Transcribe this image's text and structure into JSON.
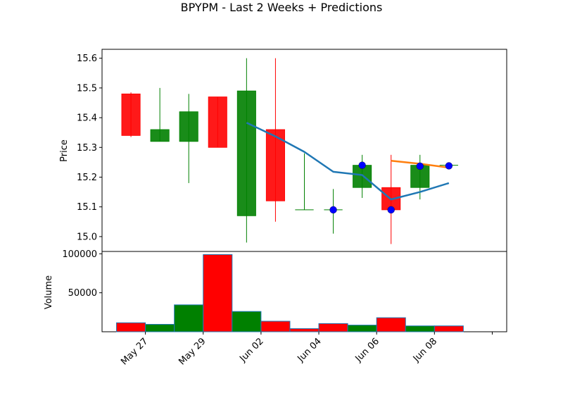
{
  "chart_data": {
    "title": "BPYPM - Last 2 Weeks + Predictions",
    "type": "candlestick",
    "colors": {
      "up": "#008000",
      "down": "#ff0000",
      "prediction_line": "#1f77b4",
      "forecast_line": "#ff7f0e",
      "marker": "#0000ff"
    },
    "x_ticks": [
      "May 27",
      "May 29",
      "Jun 02",
      "Jun 04",
      "Jun 06",
      "Jun 08"
    ],
    "x_tick_values": [
      1,
      3,
      5,
      7,
      9,
      11
    ],
    "price_panel": {
      "ylabel": "Price",
      "ylim": [
        14.95,
        15.63
      ],
      "y_ticks": [
        "15.0",
        "15.1",
        "15.2",
        "15.3",
        "15.4",
        "15.5",
        "15.6"
      ],
      "y_tick_values": [
        15.0,
        15.1,
        15.2,
        15.3,
        15.4,
        15.5,
        15.6
      ],
      "candles": [
        {
          "x": 0.5,
          "open": 15.48,
          "high": 15.485,
          "low": 15.335,
          "close": 15.34
        },
        {
          "x": 1.5,
          "open": 15.32,
          "high": 15.5,
          "low": 15.32,
          "close": 15.36
        },
        {
          "x": 2.5,
          "open": 15.32,
          "high": 15.48,
          "low": 15.18,
          "close": 15.42
        },
        {
          "x": 3.5,
          "open": 15.47,
          "high": 15.47,
          "low": 15.3,
          "close": 15.3
        },
        {
          "x": 4.5,
          "open": 15.07,
          "high": 15.6,
          "low": 14.98,
          "close": 15.49
        },
        {
          "x": 5.5,
          "open": 15.36,
          "high": 15.6,
          "low": 15.05,
          "close": 15.12
        },
        {
          "x": 6.5,
          "open": 15.09,
          "high": 15.28,
          "low": 15.09,
          "close": 15.09
        },
        {
          "x": 7.5,
          "open": 15.09,
          "high": 15.16,
          "low": 15.01,
          "close": 15.09
        },
        {
          "x": 8.5,
          "open": 15.165,
          "high": 15.275,
          "low": 15.13,
          "close": 15.24
        },
        {
          "x": 9.5,
          "open": 15.165,
          "high": 15.275,
          "low": 14.975,
          "close": 15.09
        },
        {
          "x": 10.5,
          "open": 15.165,
          "high": 15.275,
          "low": 15.125,
          "close": 15.24
        },
        {
          "x": 11.5,
          "open": 15.24,
          "high": 15.24,
          "low": 15.24,
          "close": 15.24
        }
      ],
      "prediction_line": [
        {
          "x": 4.5,
          "y": 15.383
        },
        {
          "x": 5.5,
          "y": 15.337
        },
        {
          "x": 6.5,
          "y": 15.285
        },
        {
          "x": 7.5,
          "y": 15.218
        },
        {
          "x": 8.5,
          "y": 15.207
        },
        {
          "x": 9.5,
          "y": 15.125
        },
        {
          "x": 10.5,
          "y": 15.15
        },
        {
          "x": 11.5,
          "y": 15.18
        }
      ],
      "forecast_line": [
        {
          "x": 9.5,
          "y": 15.255
        },
        {
          "x": 10.5,
          "y": 15.245
        },
        {
          "x": 11.5,
          "y": 15.232
        }
      ],
      "markers": [
        {
          "x": 7.5,
          "y": 15.09
        },
        {
          "x": 8.5,
          "y": 15.24
        },
        {
          "x": 9.5,
          "y": 15.09
        },
        {
          "x": 10.5,
          "y": 15.237
        },
        {
          "x": 11.5,
          "y": 15.238
        }
      ]
    },
    "volume_panel": {
      "ylabel": "Volume",
      "ylim": [
        0,
        103000
      ],
      "y_ticks": [
        "50000",
        "100000"
      ],
      "y_tick_values": [
        50000,
        100000
      ],
      "bars": [
        {
          "x": 0.5,
          "value": 11500,
          "dir": "down"
        },
        {
          "x": 1.5,
          "value": 9500,
          "dir": "up"
        },
        {
          "x": 2.5,
          "value": 34500,
          "dir": "up"
        },
        {
          "x": 3.5,
          "value": 99000,
          "dir": "down"
        },
        {
          "x": 4.5,
          "value": 26000,
          "dir": "up"
        },
        {
          "x": 5.5,
          "value": 13500,
          "dir": "down"
        },
        {
          "x": 6.5,
          "value": 4000,
          "dir": "down"
        },
        {
          "x": 7.5,
          "value": 10500,
          "dir": "down"
        },
        {
          "x": 8.5,
          "value": 8500,
          "dir": "up"
        },
        {
          "x": 9.5,
          "value": 18000,
          "dir": "down"
        },
        {
          "x": 10.5,
          "value": 7500,
          "dir": "up"
        },
        {
          "x": 11.5,
          "value": 7500,
          "dir": "down"
        }
      ]
    },
    "x_range": [
      -0.5,
      13.5
    ]
  }
}
